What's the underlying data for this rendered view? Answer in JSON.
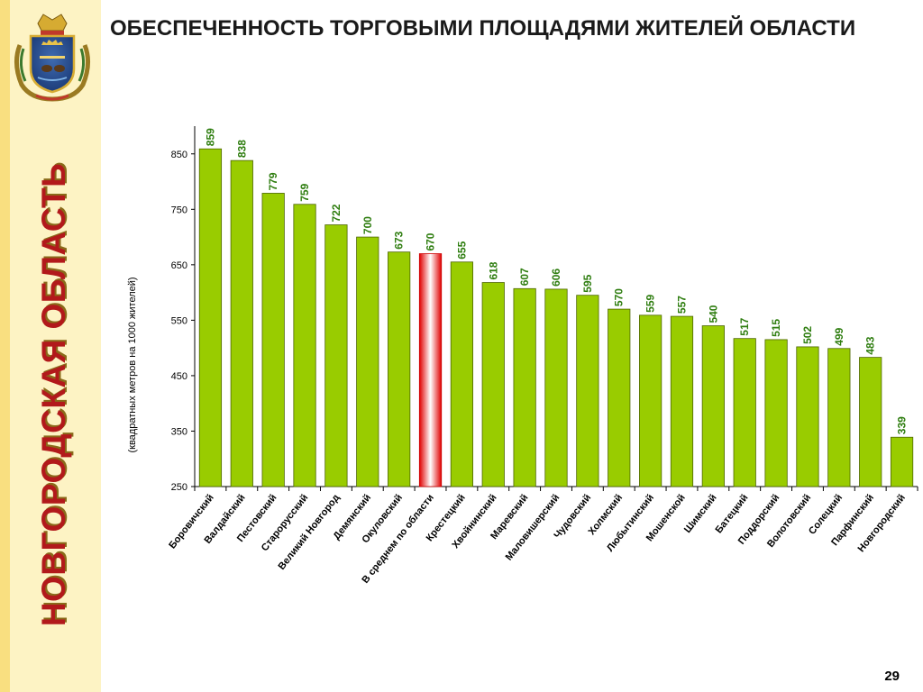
{
  "slide": {
    "title": "ОБЕСПЕЧЕННОСТЬ ТОРГОВЫМИ ПЛОЩАДЯМИ ЖИТЕЛЕЙ ОБЛАСТИ",
    "region": "НОВГОРОДСКАЯ ОБЛАСТЬ",
    "page_number": "29"
  },
  "colors": {
    "bar": "#99cc00",
    "bar_highlight": "#ff0000",
    "value_label": "#2e7d0f",
    "region_text": "#b2191b",
    "sidebar": "#fdf3c4"
  },
  "chart_data": {
    "type": "bar",
    "title": "",
    "xlabel": "",
    "ylabel": "(квадратных метров на 1000 жителей)",
    "ylim": [
      250,
      900
    ],
    "yticks": [
      250,
      350,
      450,
      550,
      650,
      750,
      850
    ],
    "grid": false,
    "highlight_category": "В среднем по области",
    "categories": [
      "Боровичский",
      "Валдайский",
      "Пестовский",
      "Старорусский",
      "Великий Новгород",
      "Демянский",
      "Окуловский",
      "В среднем по области",
      "Крестецкий",
      "Хвойнинский",
      "Маревский",
      "Маловишерский",
      "Чудовский",
      "Холмский",
      "Любытинский",
      "Мошенской",
      "Шимский",
      "Батецкий",
      "Поддорский",
      "Волотовский",
      "Солецкий",
      "Парфинский",
      "Новгородский"
    ],
    "values": [
      859,
      838,
      779,
      759,
      722,
      700,
      673,
      670,
      655,
      618,
      607,
      606,
      595,
      570,
      559,
      557,
      540,
      517,
      515,
      502,
      499,
      483,
      339
    ]
  }
}
